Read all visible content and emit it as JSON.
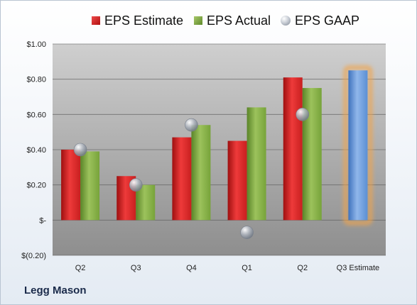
{
  "company": "Legg Mason",
  "legend": {
    "estimate": "EPS Estimate",
    "actual": "EPS Actual",
    "gaap": "EPS GAAP"
  },
  "colors": {
    "estimate": "#c81f1f",
    "actual": "#77a33a",
    "gaap": "#aeb4bd",
    "forecast": "#5b8fd4",
    "forecast_glow": "#f2a44a",
    "plot_bg_top": "#cfcfcf",
    "plot_bg_bottom": "#8e8e8e"
  },
  "chart_data": {
    "type": "bar",
    "categories": [
      "Q2",
      "Q3",
      "Q4",
      "Q1",
      "Q2",
      "Q3 Estimate"
    ],
    "series": [
      {
        "name": "EPS Estimate",
        "values": [
          0.4,
          0.25,
          0.47,
          0.45,
          0.81,
          null
        ]
      },
      {
        "name": "EPS Actual",
        "values": [
          0.39,
          0.2,
          0.54,
          0.64,
          0.75,
          null
        ]
      },
      {
        "name": "EPS GAAP",
        "values": [
          0.4,
          0.2,
          0.54,
          -0.07,
          0.6,
          null
        ]
      },
      {
        "name": "Q3 Estimate",
        "values": [
          null,
          null,
          null,
          null,
          null,
          0.85
        ]
      }
    ],
    "ylim": [
      -0.2,
      1.0
    ],
    "yticks": [
      -0.2,
      0.0,
      0.2,
      0.4,
      0.6,
      0.8,
      1.0
    ],
    "ytick_labels": [
      "$(0.20)",
      "$-",
      "$0.20",
      "$0.40",
      "$0.60",
      "$0.80",
      "$1.00"
    ],
    "grid": true,
    "legend_position": "top"
  }
}
